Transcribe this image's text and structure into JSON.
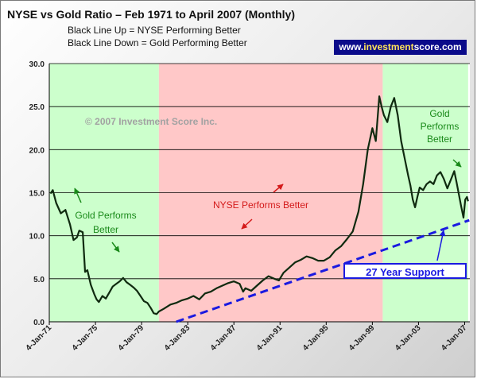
{
  "header": {
    "title": "NYSE vs Gold Ratio – Feb 1971 to April 2007 (Monthly)",
    "subtitle1": "Black Line Up = NYSE Performing Better",
    "subtitle2": "Black Line Down = Gold Performing Better",
    "badge_prefix": "www.",
    "badge_highlight": "investment",
    "badge_suffix": "score.com"
  },
  "annotations": {
    "copyright": "© 2007 Investment Score Inc.",
    "gold_left_line1": "Gold Performs",
    "gold_left_line2": "Better",
    "nyse": "NYSE Performs Better",
    "gold_right_line1": "Gold",
    "gold_right_line2": "Performs",
    "gold_right_line3": "Better",
    "support": "27 Year Support"
  },
  "colors": {
    "gold_zone": "#ccffcc",
    "nyse_zone": "#ffc8c8",
    "line": "#0f2a0f",
    "trend": "#1a1ae0",
    "arrow_green": "#1a8a1a",
    "arrow_red": "#d41a1a"
  },
  "chart_data": {
    "type": "line",
    "title": "NYSE vs Gold Ratio – Feb 1971 to April 2007 (Monthly)",
    "xlabel": "",
    "ylabel": "",
    "ylim": [
      0,
      30
    ],
    "yticks": [
      "0.0",
      "5.0",
      "10.0",
      "15.0",
      "20.0",
      "25.0",
      "30.0"
    ],
    "xticks": [
      {
        "label": "4-Jan-71",
        "year": 1971.0
      },
      {
        "label": "4-Jan-75",
        "year": 1975.0
      },
      {
        "label": "4-Jan-79",
        "year": 1979.0
      },
      {
        "label": "4-Jan-83",
        "year": 1983.0
      },
      {
        "label": "4-Jan-87",
        "year": 1987.0
      },
      {
        "label": "4-Jan-91",
        "year": 1991.0
      },
      {
        "label": "4-Jan-95",
        "year": 1995.0
      },
      {
        "label": "4-Jan-99",
        "year": 1999.0
      },
      {
        "label": "4-Jan-03",
        "year": 2003.0
      },
      {
        "label": "4-Jan-07",
        "year": 2007.0
      }
    ],
    "grid": true,
    "legend": "none",
    "zones": [
      {
        "name": "Gold Performs Better",
        "from": 1971.0,
        "to": 1980.5
      },
      {
        "name": "NYSE Performs Better",
        "from": 1980.5,
        "to": 1999.9
      },
      {
        "name": "Gold Performs Better",
        "from": 1999.9,
        "to": 2007.3
      }
    ],
    "series": [
      {
        "values_x": [
          1971.1,
          1971.3,
          1971.6,
          1972.0,
          1972.4,
          1972.8,
          1973.1,
          1973.4,
          1973.6,
          1973.9,
          1974.1,
          1974.3,
          1974.6,
          1974.9,
          1975.1,
          1975.3,
          1975.6,
          1975.9,
          1976.2,
          1976.5,
          1976.8,
          1977.1,
          1977.4,
          1977.7,
          1978.0,
          1978.3,
          1978.6,
          1978.9,
          1979.2,
          1979.5,
          1979.8,
          1980.05,
          1980.3,
          1980.5,
          1980.9,
          1981.5,
          1982.0,
          1982.5,
          1983.0,
          1983.5,
          1984.0,
          1984.5,
          1985.0,
          1985.5,
          1986.0,
          1986.5,
          1987.0,
          1987.5,
          1987.8,
          1988.0,
          1988.5,
          1989.0,
          1989.5,
          1990.0,
          1990.5,
          1990.9,
          1991.3,
          1991.8,
          1992.3,
          1992.8,
          1993.3,
          1993.8,
          1994.3,
          1994.8,
          1995.3,
          1995.8,
          1996.3,
          1996.8,
          1997.3,
          1997.8,
          1998.2,
          1998.6,
          1999.0,
          1999.3,
          1999.6,
          1999.8,
          2000.0,
          2000.3,
          2000.6,
          2000.9,
          2001.2,
          2001.5,
          2001.8,
          2002.1,
          2002.3,
          2002.5,
          2002.7,
          2002.9,
          2003.1,
          2003.4,
          2003.7,
          2004.0,
          2004.3,
          2004.6,
          2004.9,
          2005.2,
          2005.5,
          2005.8,
          2006.1,
          2006.3,
          2006.5,
          2006.7,
          2006.9,
          2007.05,
          2007.2,
          2007.3
        ],
        "values_y": [
          14.9,
          15.3,
          13.8,
          12.6,
          13.0,
          11.3,
          9.5,
          9.8,
          10.6,
          10.4,
          5.8,
          6.0,
          4.3,
          3.2,
          2.6,
          2.3,
          3.0,
          2.7,
          3.4,
          4.1,
          4.4,
          4.7,
          5.1,
          4.6,
          4.3,
          4.0,
          3.6,
          3.0,
          2.4,
          2.2,
          1.6,
          1.0,
          0.9,
          1.2,
          1.5,
          2.0,
          2.2,
          2.5,
          2.7,
          3.0,
          2.6,
          3.3,
          3.5,
          3.9,
          4.2,
          4.5,
          4.7,
          4.4,
          3.5,
          3.9,
          3.6,
          4.2,
          4.8,
          5.3,
          5.0,
          4.8,
          5.7,
          6.3,
          6.9,
          7.2,
          7.6,
          7.4,
          7.1,
          7.1,
          7.5,
          8.3,
          8.8,
          9.6,
          10.5,
          12.8,
          16.0,
          20.0,
          22.5,
          21.0,
          26.2,
          25.0,
          24.0,
          23.2,
          25.0,
          26.0,
          24.0,
          21.0,
          19.0,
          17.0,
          15.8,
          14.2,
          13.3,
          14.5,
          15.6,
          15.3,
          16.0,
          16.3,
          16.0,
          17.0,
          17.4,
          16.6,
          15.5,
          16.5,
          17.5,
          16.2,
          14.8,
          13.4,
          12.1,
          14.2,
          14.5,
          14.0
        ]
      }
    ],
    "support_line": {
      "x": [
        1982.0,
        2007.4
      ],
      "y": [
        0.0,
        11.8
      ]
    }
  }
}
